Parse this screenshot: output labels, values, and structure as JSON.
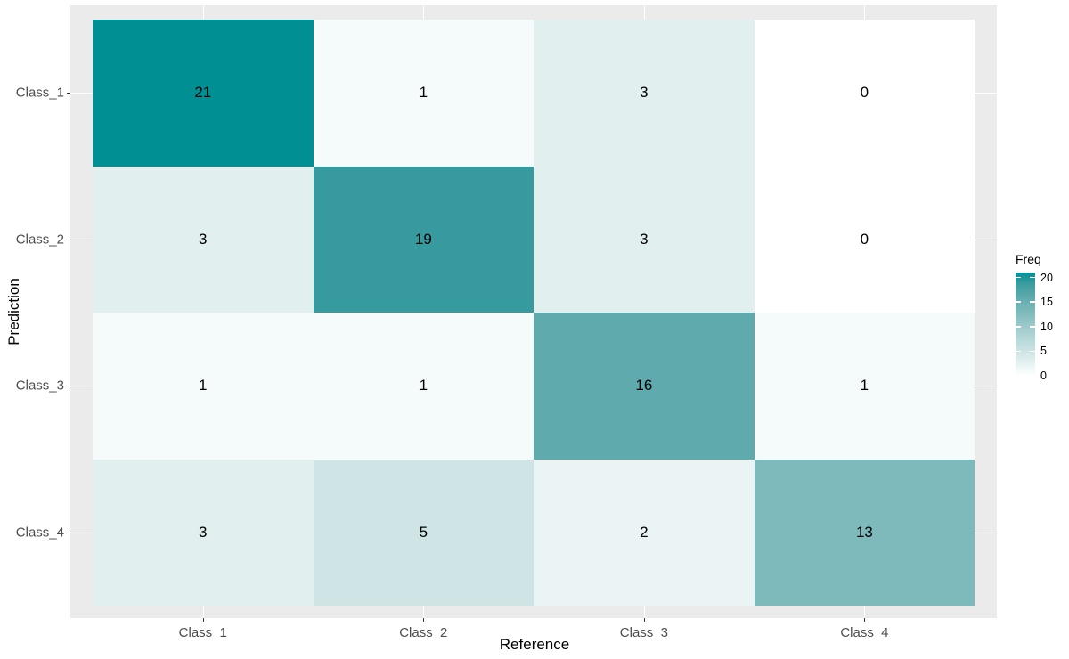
{
  "chart_data": {
    "type": "heatmap",
    "xlabel": "Reference",
    "ylabel": "Prediction",
    "x_categories": [
      "Class_1",
      "Class_2",
      "Class_3",
      "Class_4"
    ],
    "y_categories": [
      "Class_1",
      "Class_2",
      "Class_3",
      "Class_4"
    ],
    "matrix": [
      [
        21,
        1,
        3,
        0
      ],
      [
        3,
        19,
        3,
        0
      ],
      [
        1,
        1,
        16,
        1
      ],
      [
        3,
        5,
        2,
        13
      ]
    ],
    "legend": {
      "title": "Freq",
      "breaks": [
        20,
        15,
        10,
        5,
        0
      ],
      "limits": [
        0,
        21
      ],
      "low_color": "#FFFFFF",
      "high_color": "#009094"
    },
    "colors": {
      "panel_background": "#EBEBEB",
      "gridline": "#FFFFFF",
      "axis_text": "#4D4D4D",
      "axis_title": "#000000",
      "tick_mark": "#333333",
      "cell_text": "#000000"
    }
  }
}
